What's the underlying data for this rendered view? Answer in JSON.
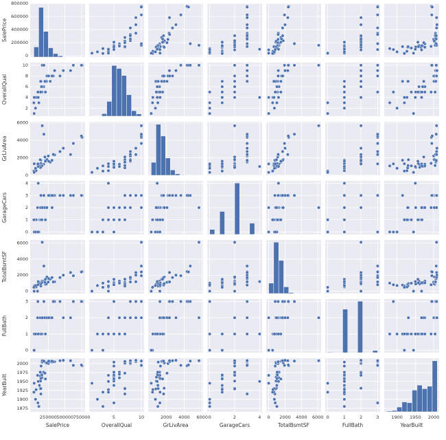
{
  "chart_data": {
    "type": "pairplot",
    "color": "#4c72b0",
    "panel_color": "#eaeaf2",
    "grid": true,
    "variables": [
      {
        "name": "SalePrice",
        "lim": [
          -20000,
          800000
        ],
        "xticks": [
          250000,
          500000,
          750000
        ],
        "yticks": [
          0,
          200000,
          400000,
          600000,
          800000
        ],
        "values": [
          208500,
          181500,
          223500,
          140000,
          250000,
          143000,
          307000,
          200000,
          129900,
          118000,
          129500,
          345000,
          144000,
          279500,
          157000,
          132000,
          149000,
          90000,
          159000,
          139000,
          325300,
          139400,
          230000,
          129900,
          154000,
          256300,
          134800,
          306000,
          207500,
          68500,
          40000,
          755000,
          745000,
          160000,
          184750,
          34900,
          625000,
          582933,
          39300,
          110000,
          60000,
          475000,
          425000,
          100000,
          95000
        ],
        "hist": {
          "bins": [
            34900,
            106910,
            178920,
            250930,
            322940,
            394950,
            466960,
            538970,
            610980,
            682990,
            755000
          ],
          "counts": [
            148,
            723,
            373,
            135,
            51,
            19,
            4,
            3,
            2,
            2
          ],
          "ylim": [
            0,
            780
          ]
        }
      },
      {
        "name": "OverallQual",
        "lim": [
          0.5,
          10.5
        ],
        "xticks": [
          5,
          10
        ],
        "yticks": [
          2,
          4,
          6,
          8,
          10
        ],
        "values": [
          7,
          6,
          7,
          7,
          8,
          5,
          8,
          7,
          7,
          5,
          5,
          9,
          5,
          7,
          6,
          7,
          6,
          4,
          5,
          5,
          8,
          7,
          8,
          5,
          5,
          8,
          5,
          8,
          5,
          4,
          4,
          10,
          10,
          10,
          10,
          3,
          10,
          9,
          1,
          3,
          2,
          9,
          8,
          4,
          5
        ],
        "hist": {
          "bins": [
            1,
            1.9,
            2.8,
            3.7,
            4.6,
            5.5,
            6.4,
            7.3,
            8.2,
            9.1,
            10
          ],
          "counts": [
            2,
            3,
            20,
            116,
            397,
            374,
            319,
            168,
            43,
            18
          ],
          "ylim": [
            0,
            420
          ]
        }
      },
      {
        "name": "GrLivArea",
        "lim": [
          0,
          6100
        ],
        "xticks": [
          2000,
          4000,
          6000
        ],
        "yticks": [
          0,
          2000,
          4000,
          6000
        ],
        "values": [
          1710,
          1262,
          1786,
          1717,
          2198,
          1362,
          1694,
          2090,
          1774,
          1077,
          1040,
          2324,
          912,
          1494,
          1253,
          854,
          1004,
          1296,
          1114,
          1339,
          2376,
          1108,
          1795,
          1060,
          1060,
          1600,
          900,
          1704,
          1600,
          520,
          1317,
          4316,
          4476,
          5642,
          4676,
          480,
          3627,
          2364,
          334,
          1072,
          800,
          3082,
          2700,
          1000,
          1300
        ],
        "hist": {
          "bins": [
            334,
            865,
            1396,
            1926,
            2457,
            2988,
            3519,
            4049,
            4580,
            5111,
            5642
          ],
          "counts": [
            148,
            580,
            447,
            197,
            61,
            17,
            5,
            3,
            1,
            1
          ],
          "ylim": [
            0,
            610
          ]
        }
      },
      {
        "name": "GarageCars",
        "lim": [
          -0.2,
          4.2
        ],
        "xticks": [
          0,
          2,
          4
        ],
        "yticks": [
          0,
          1,
          2,
          3,
          4
        ],
        "values": [
          2,
          2,
          2,
          3,
          3,
          2,
          2,
          2,
          2,
          1,
          1,
          3,
          1,
          3,
          1,
          2,
          2,
          2,
          2,
          1,
          3,
          1,
          2,
          2,
          1,
          3,
          2,
          3,
          1,
          1,
          1,
          3,
          3,
          2,
          3,
          1,
          3,
          3,
          0,
          0,
          0,
          3,
          3,
          4,
          0
        ],
        "hist": {
          "bins": [
            0,
            0.4,
            0.8,
            1.2,
            1.6,
            2,
            2.4,
            2.8,
            3.2,
            3.6,
            4
          ],
          "counts": [
            81,
            0,
            369,
            0,
            0,
            824,
            0,
            0,
            181,
            5
          ],
          "ylim": [
            0,
            860
          ]
        }
      },
      {
        "name": "TotalBsmtSF",
        "lim": [
          -300,
          6400
        ],
        "xticks": [
          0,
          2000,
          4000,
          6000
        ],
        "yticks": [
          0,
          2000,
          4000,
          6000
        ],
        "values": [
          856,
          1262,
          920,
          756,
          1145,
          796,
          1686,
          1107,
          952,
          991,
          1040,
          1175,
          912,
          1494,
          1253,
          832,
          1004,
          0,
          1114,
          1029,
          1158,
          637,
          1777,
          1040,
          1060,
          1566,
          900,
          1704,
          1484,
          520,
          649,
          2444,
          2396,
          6110,
          3138,
          480,
          1930,
          2330,
          0,
          1000,
          700,
          2000,
          1700,
          1200,
          800
        ],
        "hist": {
          "bins": [
            0,
            611,
            1222,
            1833,
            2444,
            3055,
            3666,
            4277,
            4888,
            5499,
            6110
          ],
          "counts": [
            148,
            728,
            469,
            96,
            14,
            4,
            0,
            0,
            0,
            1
          ],
          "ylim": [
            0,
            760
          ]
        }
      },
      {
        "name": "FullBath",
        "lim": [
          -0.15,
          3.15
        ],
        "xticks": [
          0,
          1,
          2,
          3
        ],
        "yticks": [
          0,
          1,
          2,
          3
        ],
        "values": [
          2,
          2,
          2,
          1,
          2,
          1,
          2,
          2,
          2,
          1,
          1,
          3,
          1,
          2,
          1,
          1,
          1,
          2,
          1,
          1,
          3,
          1,
          2,
          1,
          1,
          2,
          1,
          2,
          1,
          1,
          1,
          3,
          3,
          2,
          3,
          0,
          3,
          2,
          0,
          1,
          1,
          2,
          3,
          1,
          3
        ],
        "hist": {
          "bins": [
            0,
            0.3,
            0.6,
            0.9,
            1.2,
            1.5,
            1.8,
            2.1,
            2.4,
            2.7,
            3
          ],
          "counts": [
            9,
            0,
            0,
            650,
            0,
            0,
            768,
            0,
            0,
            33
          ],
          "ylim": [
            0,
            800
          ]
        }
      },
      {
        "name": "YearBuilt",
        "lim": [
          1865,
          2015
        ],
        "xticks": [
          1900,
          1950,
          2000
        ],
        "yticks": [
          1875,
          1900,
          1925,
          1950,
          1975,
          2000
        ],
        "values": [
          2003,
          1976,
          2001,
          1915,
          2000,
          1993,
          2004,
          1973,
          1931,
          1939,
          1965,
          2005,
          1962,
          2006,
          1960,
          1929,
          1970,
          1967,
          2004,
          1958,
          2005,
          1930,
          2002,
          1976,
          1968,
          2007,
          1951,
          2007,
          1957,
          1927,
          1920,
          1994,
          1996,
          2008,
          2007,
          1920,
          1995,
          2008,
          1945,
          1880,
          1900,
          2009,
          2008,
          1950,
          1890
        ],
        "hist": {
          "bins": [
            1872,
            1885.8,
            1899.6,
            1913.4,
            1927.2,
            1941,
            1954.8,
            1968.6,
            1982.4,
            1996.2,
            2010
          ],
          "counts": [
            7,
            11,
            40,
            83,
            76,
            182,
            224,
            194,
            215,
            428
          ],
          "ylim": [
            0,
            450
          ]
        }
      }
    ]
  }
}
